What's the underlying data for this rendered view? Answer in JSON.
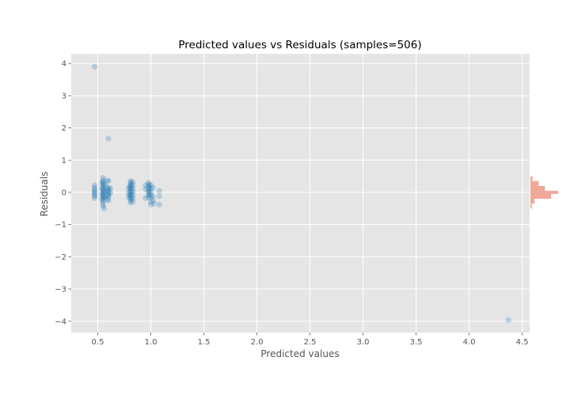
{
  "chart_data": {
    "type": "scatter",
    "title": "Predicted values vs Residuals (samples=506)",
    "xlabel": "Predicted values",
    "ylabel": "Residuals",
    "xlim": [
      0.25,
      4.57
    ],
    "ylim": [
      -4.35,
      4.3
    ],
    "xticks": [
      0.5,
      1.0,
      1.5,
      2.0,
      2.5,
      3.0,
      3.5,
      4.0,
      4.5
    ],
    "yticks": [
      -4,
      -3,
      -2,
      -1,
      0,
      1,
      2,
      3,
      4
    ],
    "xtick_labels": [
      "0.5",
      "1.0",
      "1.5",
      "2.0",
      "2.5",
      "3.0",
      "3.5",
      "4.0",
      "4.5"
    ],
    "ytick_labels": [
      "−4",
      "−3",
      "−2",
      "−1",
      "0",
      "1",
      "2",
      "3",
      "4"
    ],
    "grid": true,
    "series": [
      {
        "points": [
          [
            0.47,
            3.9
          ],
          [
            0.6,
            1.67
          ],
          [
            4.37,
            -3.97
          ],
          [
            0.47,
            0.22
          ],
          [
            0.47,
            0.15
          ],
          [
            0.47,
            0.08
          ],
          [
            0.47,
            0.03
          ],
          [
            0.47,
            -0.02
          ],
          [
            0.47,
            -0.07
          ],
          [
            0.47,
            -0.12
          ],
          [
            0.47,
            -0.18
          ],
          [
            0.55,
            0.45
          ],
          [
            0.55,
            0.38
          ],
          [
            0.55,
            0.32
          ],
          [
            0.55,
            0.26
          ],
          [
            0.55,
            0.2
          ],
          [
            0.55,
            0.14
          ],
          [
            0.55,
            0.09
          ],
          [
            0.55,
            0.04
          ],
          [
            0.55,
            -0.01
          ],
          [
            0.55,
            -0.06
          ],
          [
            0.55,
            -0.11
          ],
          [
            0.55,
            -0.16
          ],
          [
            0.55,
            -0.22
          ],
          [
            0.55,
            -0.28
          ],
          [
            0.55,
            -0.35
          ],
          [
            0.55,
            -0.42
          ],
          [
            0.56,
            -0.5
          ],
          [
            0.54,
            0.3
          ],
          [
            0.54,
            0.12
          ],
          [
            0.54,
            -0.05
          ],
          [
            0.54,
            -0.2
          ],
          [
            0.56,
            0.25
          ],
          [
            0.56,
            0.02
          ],
          [
            0.56,
            -0.15
          ],
          [
            0.58,
            0.18
          ],
          [
            0.58,
            0.05
          ],
          [
            0.58,
            -0.1
          ],
          [
            0.59,
            0.35
          ],
          [
            0.59,
            -0.22
          ],
          [
            0.6,
            0.36
          ],
          [
            0.6,
            0.15
          ],
          [
            0.6,
            0.1
          ],
          [
            0.6,
            0.05
          ],
          [
            0.6,
            0.0
          ],
          [
            0.6,
            -0.05
          ],
          [
            0.6,
            -0.1
          ],
          [
            0.6,
            -0.15
          ],
          [
            0.6,
            -0.25
          ],
          [
            0.62,
            0.12
          ],
          [
            0.62,
            -0.02
          ],
          [
            0.79,
            0.12
          ],
          [
            0.79,
            0.0
          ],
          [
            0.79,
            -0.15
          ],
          [
            0.8,
            0.18
          ],
          [
            0.8,
            -0.08
          ],
          [
            0.81,
            0.35
          ],
          [
            0.81,
            0.3
          ],
          [
            0.81,
            0.25
          ],
          [
            0.81,
            0.2
          ],
          [
            0.81,
            0.15
          ],
          [
            0.81,
            0.1
          ],
          [
            0.81,
            0.05
          ],
          [
            0.81,
            0.0
          ],
          [
            0.81,
            -0.05
          ],
          [
            0.81,
            -0.1
          ],
          [
            0.81,
            -0.15
          ],
          [
            0.81,
            -0.2
          ],
          [
            0.81,
            -0.25
          ],
          [
            0.81,
            -0.32
          ],
          [
            0.83,
            0.32
          ],
          [
            0.83,
            0.22
          ],
          [
            0.83,
            0.12
          ],
          [
            0.83,
            0.02
          ],
          [
            0.83,
            -0.08
          ],
          [
            0.83,
            -0.18
          ],
          [
            0.83,
            -0.28
          ],
          [
            0.95,
            0.22
          ],
          [
            0.95,
            0.1
          ],
          [
            0.95,
            -0.18
          ],
          [
            0.98,
            0.3
          ],
          [
            0.98,
            0.25
          ],
          [
            0.98,
            0.2
          ],
          [
            0.98,
            0.15
          ],
          [
            0.98,
            0.1
          ],
          [
            0.98,
            0.05
          ],
          [
            0.98,
            0.0
          ],
          [
            0.98,
            -0.05
          ],
          [
            0.98,
            -0.1
          ],
          [
            0.98,
            -0.15
          ],
          [
            1.0,
            0.22
          ],
          [
            1.0,
            0.12
          ],
          [
            1.0,
            0.02
          ],
          [
            1.0,
            -0.08
          ],
          [
            1.0,
            -0.18
          ],
          [
            1.0,
            -0.3
          ],
          [
            1.0,
            -0.38
          ],
          [
            1.02,
            0.15
          ],
          [
            1.02,
            -0.12
          ],
          [
            1.02,
            -0.25
          ],
          [
            1.03,
            -0.35
          ],
          [
            1.08,
            0.05
          ],
          [
            1.08,
            -0.12
          ],
          [
            1.08,
            -0.38
          ]
        ]
      }
    ],
    "histogram": {
      "orientation": "horizontal",
      "placement": "right",
      "bins": [
        {
          "y0": -0.5,
          "y1": -0.35,
          "count": 2
        },
        {
          "y0": -0.35,
          "y1": -0.2,
          "count": 6
        },
        {
          "y0": -0.2,
          "y1": -0.05,
          "count": 30
        },
        {
          "y0": -0.05,
          "y1": 0.05,
          "count": 40
        },
        {
          "y0": 0.05,
          "y1": 0.2,
          "count": 21
        },
        {
          "y0": 0.2,
          "y1": 0.35,
          "count": 12
        },
        {
          "y0": 0.35,
          "y1": 0.5,
          "count": 3
        }
      ]
    },
    "colors": {
      "background": "#e5e5e5",
      "grid": "#ffffff",
      "points": "#1f77b4",
      "histogram": "#e8836f"
    }
  }
}
